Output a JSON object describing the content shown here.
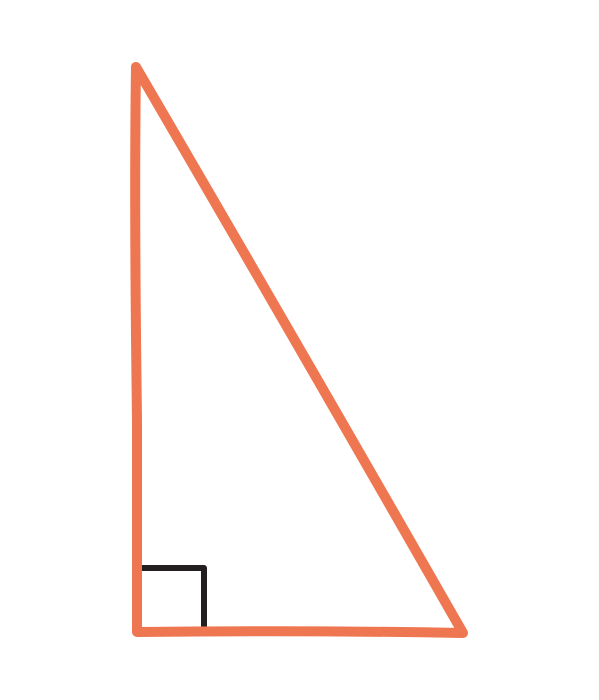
{
  "diagram": {
    "shape": "right-triangle",
    "right_angle_marker": true,
    "colors": {
      "background": "#ffffff",
      "triangle_stroke": "#EE7650",
      "right_angle_marker": "#231F20"
    }
  }
}
